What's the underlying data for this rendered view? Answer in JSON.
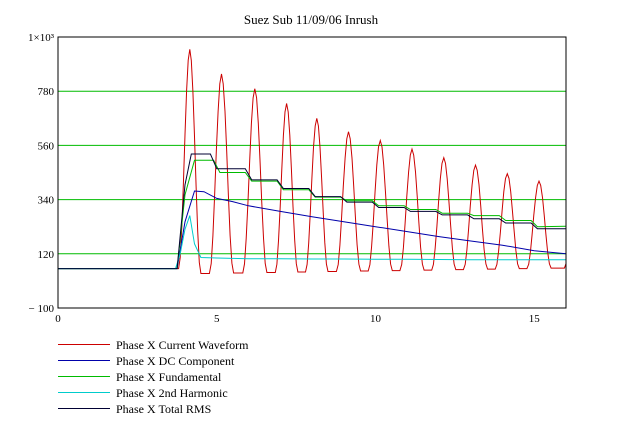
{
  "chart_data": {
    "type": "line",
    "title": "Suez Sub 11/09/06 Inrush",
    "xlabel": "",
    "ylabel": "",
    "xlim": [
      0,
      16
    ],
    "ylim": [
      -100,
      1000
    ],
    "grid": "horizontal-green",
    "x_ticks": [
      0,
      5,
      10,
      15
    ],
    "y_ticks": [
      {
        "value": -100,
        "label": "− 100"
      },
      {
        "value": 120,
        "label": "120"
      },
      {
        "value": 340,
        "label": "340"
      },
      {
        "value": 560,
        "label": "560"
      },
      {
        "value": 780,
        "label": "780"
      },
      {
        "value": 1000,
        "label": "1×10³"
      }
    ],
    "legend_position": "bottom-left",
    "waveform": {
      "cycle_times": [
        4.15,
        5.15,
        6.2,
        7.2,
        8.15,
        9.15,
        10.15,
        11.15,
        12.15,
        13.15,
        14.15,
        15.15
      ],
      "peaks": [
        950,
        850,
        790,
        730,
        670,
        615,
        580,
        545,
        510,
        480,
        445,
        415
      ],
      "troughs": [
        40,
        42,
        44,
        46,
        48,
        50,
        52,
        54,
        56,
        58,
        60,
        62
      ],
      "baseline": 60,
      "onset_time": 3.8,
      "end_time": 16
    },
    "series": [
      {
        "name": "Phase X Current Waveform",
        "color": "#cc0000",
        "kind": "waveform"
      },
      {
        "name": "Phase X DC Component",
        "color": "#0000aa",
        "x": [
          0,
          3.75,
          4.0,
          4.3,
          4.6,
          5,
          5.5,
          6,
          7,
          8,
          9,
          10,
          11,
          12,
          13,
          14,
          15,
          16
        ],
        "y": [
          60,
          60,
          250,
          375,
          372,
          345,
          332,
          315,
          292,
          270,
          250,
          230,
          210,
          190,
          172,
          155,
          132,
          120
        ]
      },
      {
        "name": "Phase X Fundamental",
        "color": "#00bb00",
        "x": [
          0,
          3.75,
          4.0,
          4.3,
          4.9,
          5.1,
          5.9,
          6.1,
          6.9,
          7.1,
          7.9,
          8.1,
          8.9,
          9.1,
          9.9,
          10.1,
          10.9,
          11.1,
          11.9,
          12.1,
          12.9,
          13.1,
          13.9,
          14.1,
          14.9,
          15.1,
          16
        ],
        "y": [
          60,
          60,
          360,
          500,
          500,
          450,
          450,
          415,
          415,
          380,
          380,
          350,
          350,
          335,
          335,
          315,
          315,
          300,
          300,
          285,
          285,
          275,
          275,
          255,
          255,
          230,
          232
        ]
      },
      {
        "name": "Phase X 2nd Harmonic",
        "color": "#00cccc",
        "x": [
          0,
          3.7,
          3.85,
          4.0,
          4.15,
          4.3,
          4.5,
          5,
          6,
          7,
          8,
          9,
          10,
          11,
          12,
          13,
          14,
          15,
          16
        ],
        "y": [
          60,
          60,
          120,
          220,
          275,
          160,
          105,
          103,
          100,
          100,
          99,
          99,
          98,
          98,
          97,
          96,
          96,
          96,
          96
        ]
      },
      {
        "name": "Phase X Total RMS",
        "color": "#000033",
        "x": [
          0,
          3.75,
          4.0,
          4.2,
          4.8,
          5.0,
          5.9,
          6.1,
          6.9,
          7.1,
          7.9,
          8.1,
          8.9,
          9.1,
          9.9,
          10.1,
          10.9,
          11.1,
          11.9,
          12.1,
          12.9,
          13.1,
          13.9,
          14.1,
          14.9,
          15.1,
          16
        ],
        "y": [
          60,
          60,
          400,
          525,
          525,
          465,
          465,
          420,
          420,
          385,
          385,
          352,
          352,
          330,
          330,
          308,
          308,
          292,
          292,
          278,
          278,
          262,
          262,
          245,
          245,
          222,
          222
        ]
      }
    ]
  }
}
